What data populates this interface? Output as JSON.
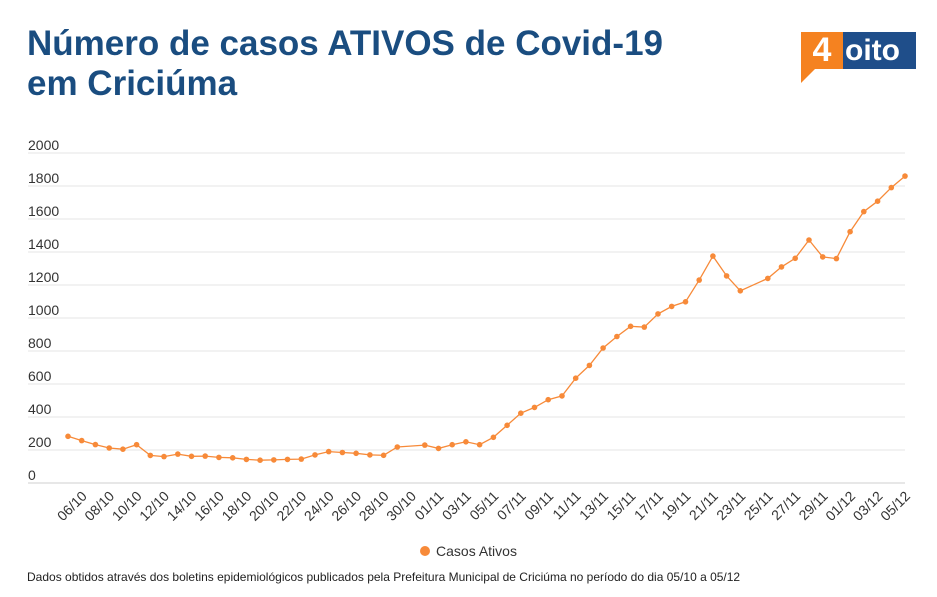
{
  "header": {
    "title_line1": "Número de casos ATIVOS de Covid-19",
    "title_line2": "em Criciúma"
  },
  "logo": {
    "four": "4",
    "text": "oito"
  },
  "colors": {
    "title": "#1a4d80",
    "line": "#f78a39",
    "grid": "#e6e6e6",
    "logo_blue": "#1f4e8a",
    "logo_orange": "#f58220"
  },
  "footnote": "Dados obtidos através dos boletins epidemiológicos publicados pela Prefeitura Municipal de Criciúma no período do dia 05/10 a 05/12",
  "chart_data": {
    "type": "line",
    "ylim": [
      0,
      2000
    ],
    "yticks": [
      0,
      200,
      400,
      600,
      800,
      1000,
      1200,
      1400,
      1600,
      1800,
      2000
    ],
    "grid": true,
    "legend_position": "bottom",
    "x": [
      "05/10",
      "06/10",
      "07/10",
      "08/10",
      "09/10",
      "10/10",
      "11/10",
      "12/10",
      "13/10",
      "14/10",
      "15/10",
      "16/10",
      "17/10",
      "18/10",
      "19/10",
      "20/10",
      "21/10",
      "22/10",
      "23/10",
      "24/10",
      "25/10",
      "26/10",
      "27/10",
      "28/10",
      "29/10",
      "30/10",
      "31/10",
      "01/11",
      "02/11",
      "03/11",
      "04/11",
      "05/11",
      "06/11",
      "07/11",
      "08/11",
      "09/11",
      "10/11",
      "11/11",
      "12/11",
      "13/11",
      "14/11",
      "15/11",
      "16/11",
      "17/11",
      "18/11",
      "19/11",
      "20/11",
      "21/11",
      "22/11",
      "23/11",
      "24/11",
      "25/11",
      "26/11",
      "27/11",
      "28/11",
      "29/11",
      "30/11",
      "01/12",
      "02/12",
      "03/12",
      "04/12",
      "05/12"
    ],
    "xtick_labels": [
      "06/10",
      "08/10",
      "10/10",
      "12/10",
      "14/10",
      "16/10",
      "18/10",
      "20/10",
      "22/10",
      "24/10",
      "26/10",
      "28/10",
      "30/10",
      "01/11",
      "03/11",
      "05/11",
      "07/11",
      "09/11",
      "11/11",
      "13/11",
      "15/11",
      "17/11",
      "19/11",
      "21/11",
      "23/11",
      "25/11",
      "27/11",
      "29/11",
      "01/12",
      "03/12",
      "05/12"
    ],
    "series": [
      {
        "name": "Casos Ativos",
        "points": [
          [
            "05/10",
            283
          ],
          [
            "06/10",
            257
          ],
          [
            "07/10",
            233
          ],
          [
            "08/10",
            212
          ],
          [
            "09/10",
            205
          ],
          [
            "10/10",
            232
          ],
          [
            "11/10",
            167
          ],
          [
            "12/10",
            160
          ],
          [
            "13/10",
            175
          ],
          [
            "14/10",
            162
          ],
          [
            "15/10",
            163
          ],
          [
            "16/10",
            155
          ],
          [
            "17/10",
            153
          ],
          [
            "18/10",
            143
          ],
          [
            "19/10",
            138
          ],
          [
            "20/10",
            140
          ],
          [
            "21/10",
            143
          ],
          [
            "22/10",
            145
          ],
          [
            "23/10",
            170
          ],
          [
            "24/10",
            190
          ],
          [
            "25/10",
            185
          ],
          [
            "26/10",
            180
          ],
          [
            "27/10",
            170
          ],
          [
            "28/10",
            168
          ],
          [
            "29/10",
            218
          ],
          [
            "31/10",
            230
          ],
          [
            "01/11",
            210
          ],
          [
            "02/11",
            232
          ],
          [
            "03/11",
            250
          ],
          [
            "04/11",
            232
          ],
          [
            "05/11",
            277
          ],
          [
            "06/11",
            350
          ],
          [
            "07/11",
            423
          ],
          [
            "08/11",
            458
          ],
          [
            "09/11",
            505
          ],
          [
            "10/11",
            528
          ],
          [
            "11/11",
            635
          ],
          [
            "12/11",
            713
          ],
          [
            "13/11",
            818
          ],
          [
            "14/11",
            888
          ],
          [
            "15/11",
            950
          ],
          [
            "16/11",
            945
          ],
          [
            "17/11",
            1025
          ],
          [
            "18/11",
            1070
          ],
          [
            "19/11",
            1098
          ],
          [
            "20/11",
            1230
          ],
          [
            "21/11",
            1375
          ],
          [
            "22/11",
            1255
          ],
          [
            "23/11",
            1165
          ],
          [
            "25/11",
            1240
          ],
          [
            "26/11",
            1310
          ],
          [
            "27/11",
            1362
          ],
          [
            "28/11",
            1473
          ],
          [
            "29/11",
            1370
          ],
          [
            "30/11",
            1360
          ],
          [
            "01/12",
            1523
          ],
          [
            "02/12",
            1645
          ],
          [
            "03/12",
            1708
          ],
          [
            "04/12",
            1790
          ],
          [
            "05/12",
            1860
          ]
        ]
      }
    ]
  }
}
